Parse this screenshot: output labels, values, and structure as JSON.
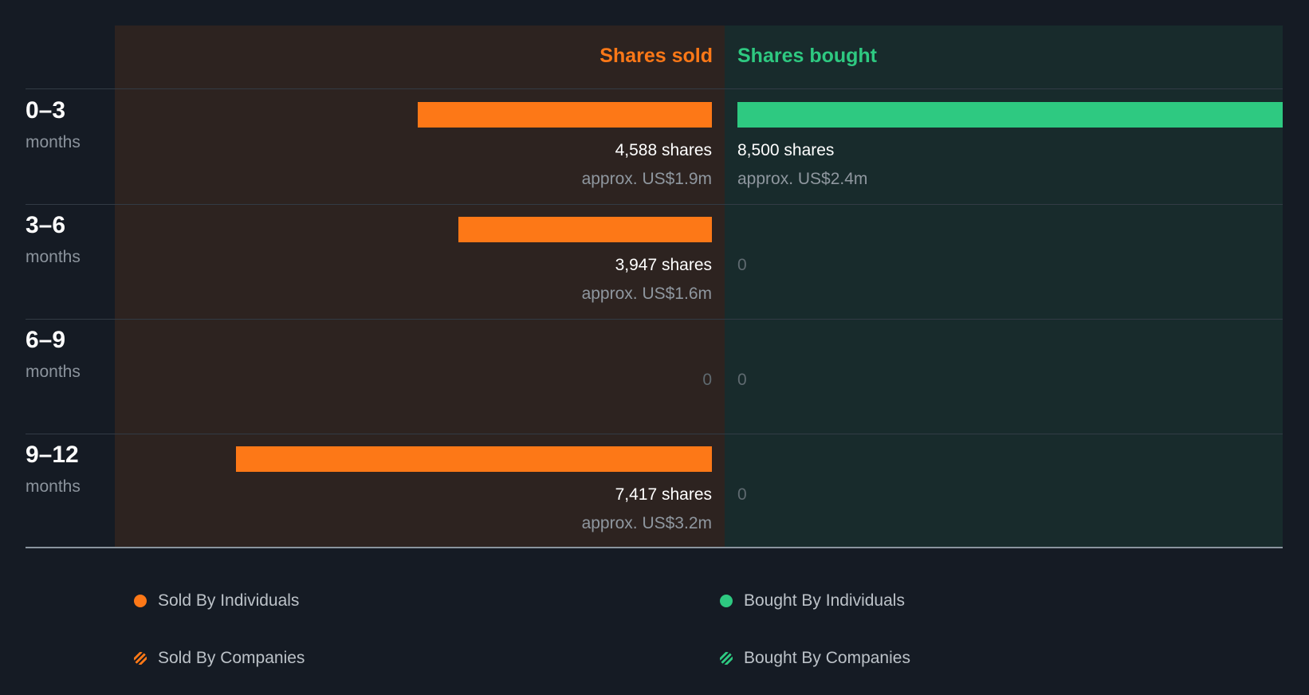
{
  "colors": {
    "sold": "#fd7817",
    "bought": "#2ec981"
  },
  "headers": {
    "sold": "Shares sold",
    "bought": "Shares bought"
  },
  "periods": [
    {
      "range": "0–3",
      "unit": "months"
    },
    {
      "range": "3–6",
      "unit": "months"
    },
    {
      "range": "6–9",
      "unit": "months"
    },
    {
      "range": "9–12",
      "unit": "months"
    }
  ],
  "labels": {
    "sold": [
      {
        "shares": "4,588 shares",
        "approx": "approx. US$1.9m"
      },
      {
        "shares": "3,947 shares",
        "approx": "approx. US$1.6m"
      },
      {
        "zero": "0"
      },
      {
        "shares": "7,417 shares",
        "approx": "approx. US$3.2m"
      }
    ],
    "bought": [
      {
        "shares": "8,500 shares",
        "approx": "approx. US$2.4m"
      },
      {
        "zero": "0"
      },
      {
        "zero": "0"
      },
      {
        "zero": "0"
      }
    ]
  },
  "legend": {
    "sold_individuals": "Sold By Individuals",
    "bought_individuals": "Bought By Individuals",
    "sold_companies": "Sold By Companies",
    "bought_companies": "Bought By Companies"
  },
  "chart_data": {
    "type": "bar",
    "categories": [
      "0–3 months",
      "3–6 months",
      "6–9 months",
      "9–12 months"
    ],
    "series": [
      {
        "name": "Shares sold",
        "values": [
          4588,
          3947,
          0,
          7417
        ]
      },
      {
        "name": "Shares bought",
        "values": [
          8500,
          0,
          0,
          0
        ]
      }
    ],
    "approx_value_usd_m": {
      "sold": [
        1.9,
        1.6,
        0,
        3.2
      ],
      "bought": [
        2.4,
        0,
        0,
        0
      ]
    },
    "legend": [
      "Sold By Individuals",
      "Bought By Individuals",
      "Sold By Companies",
      "Bought By Companies"
    ],
    "grid": true
  }
}
